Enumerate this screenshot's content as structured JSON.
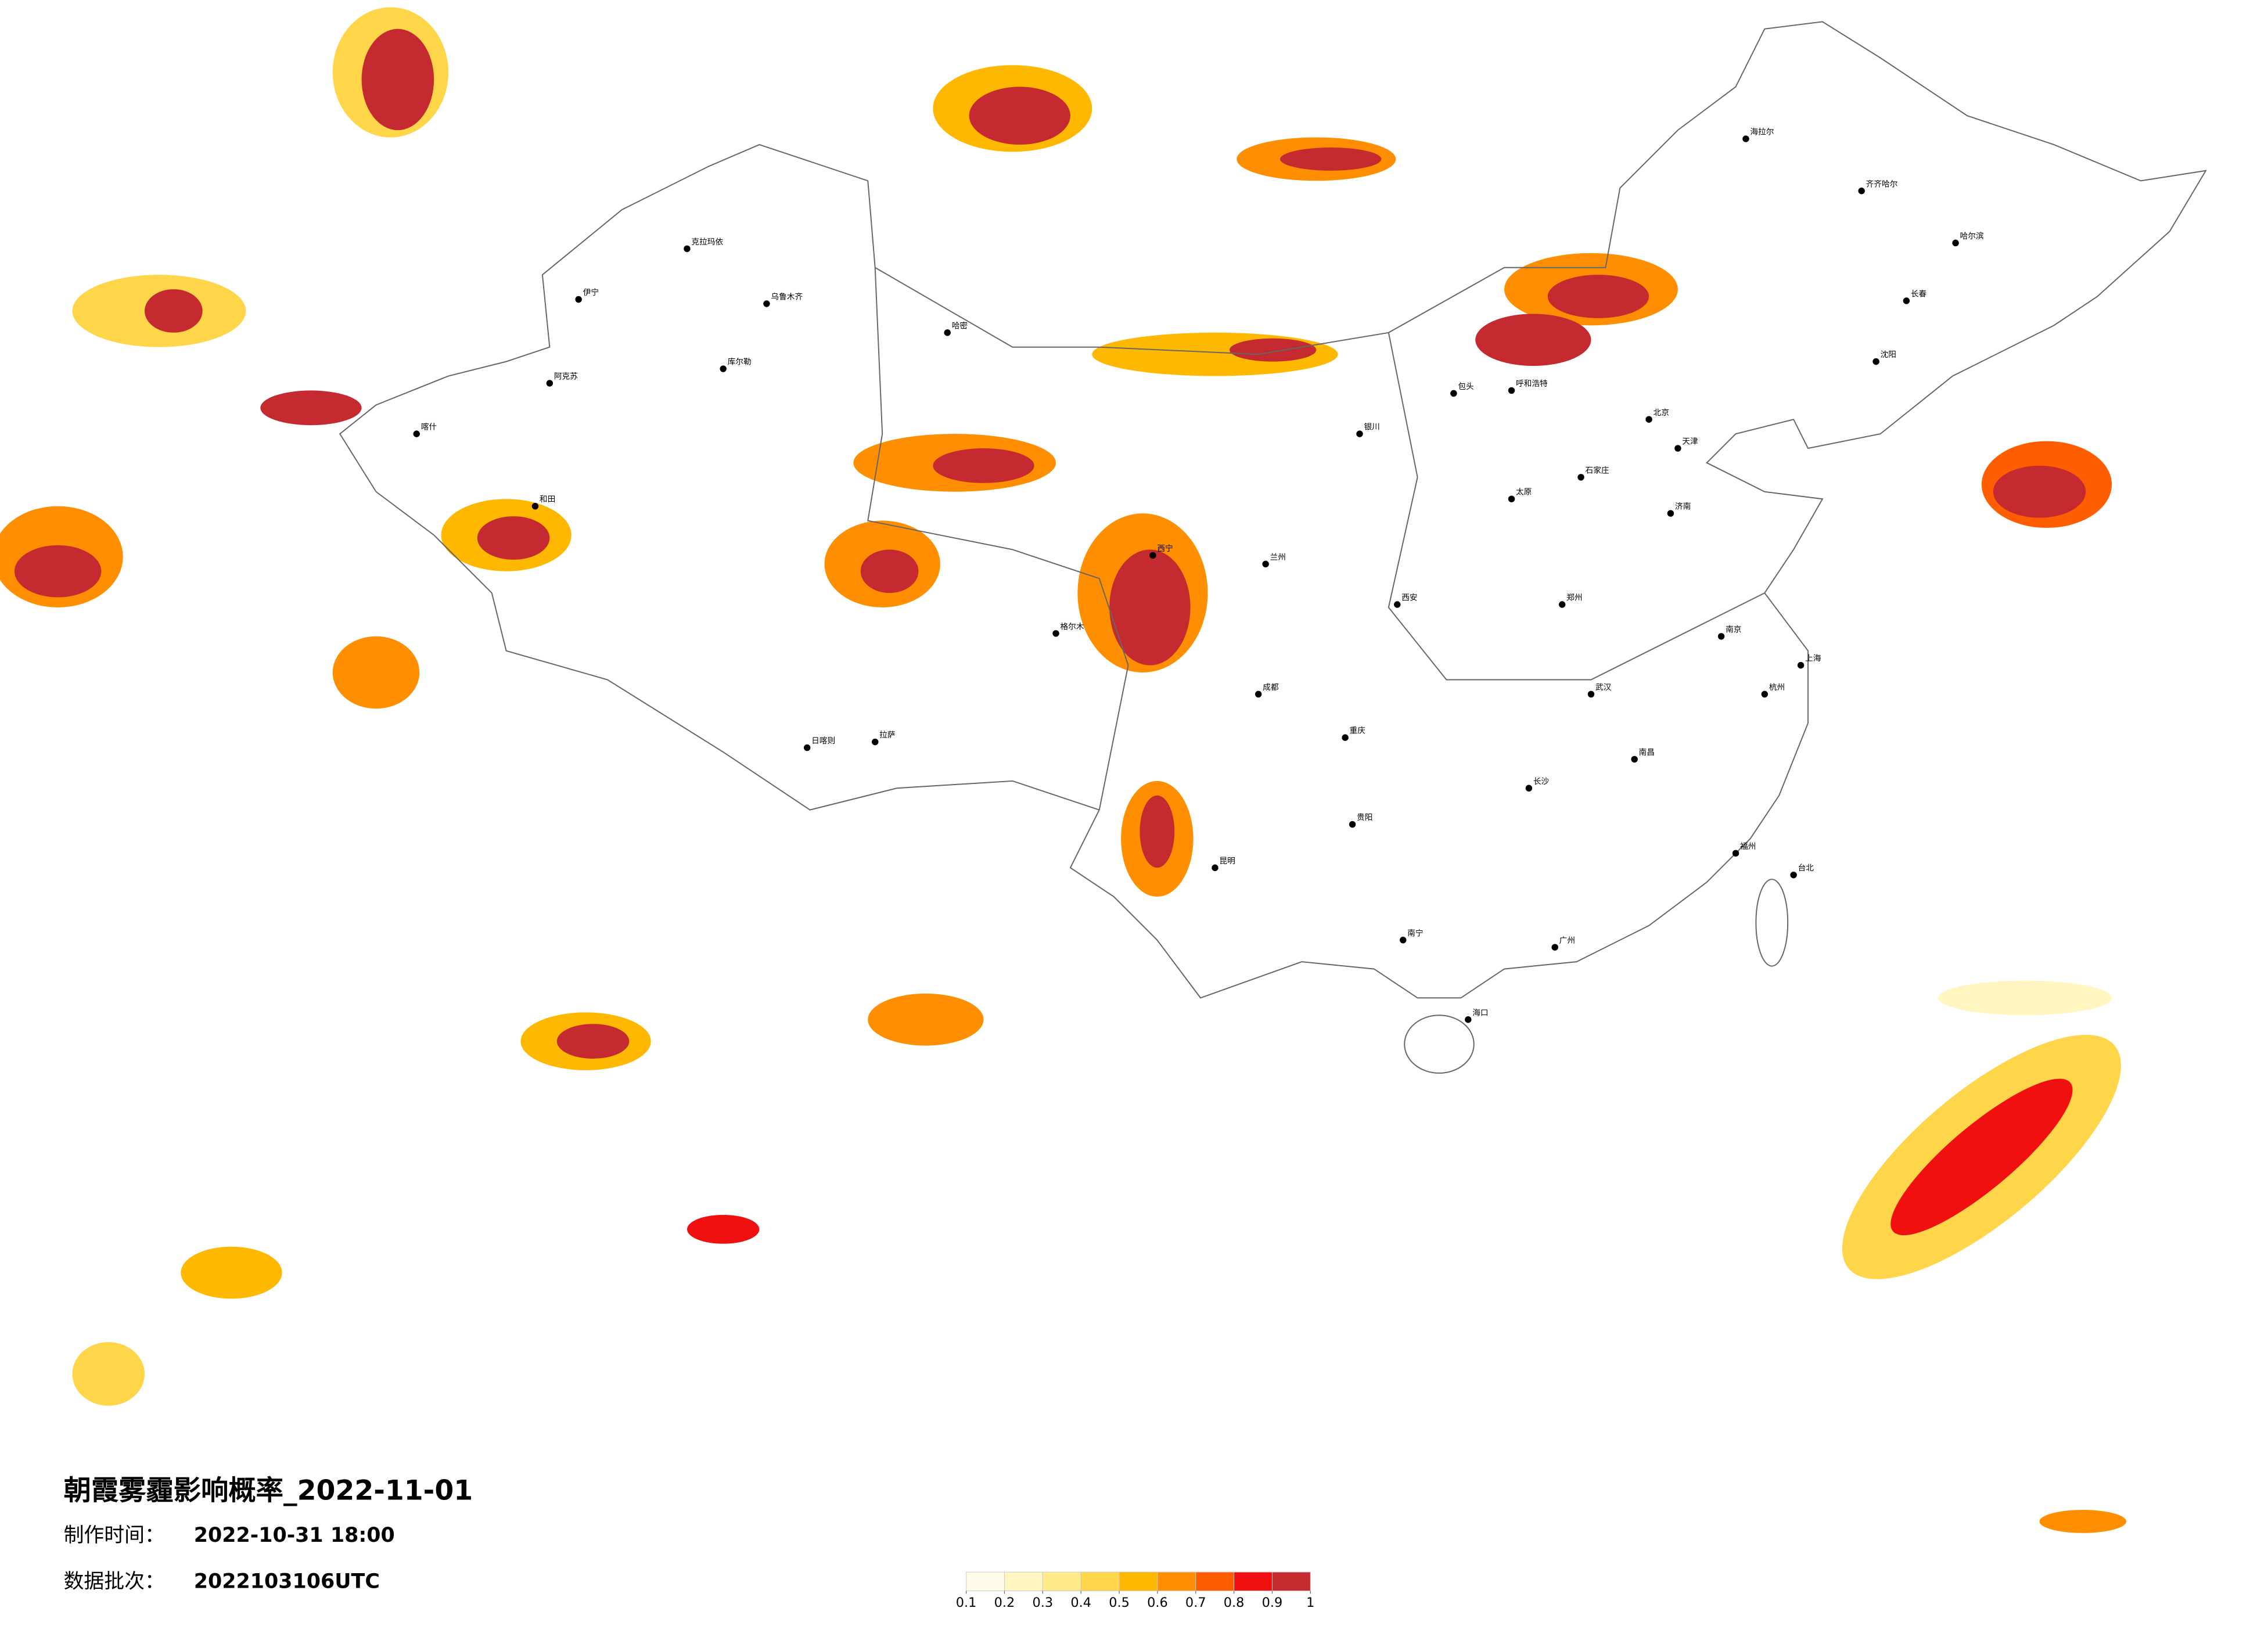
{
  "header": {
    "title": "朝霞雾霾影响概率_2022-11-01",
    "made_label": "制作时间：",
    "made_time": "2022-10-31 18:00",
    "batch_label": "数据批次：",
    "batch": "2022103106UTC"
  },
  "legend": {
    "ticks": [
      0.1,
      0.2,
      0.3,
      0.4,
      0.5,
      0.6,
      0.7,
      0.8,
      0.9,
      1
    ],
    "colors": [
      "#fffbe8",
      "#fff6c2",
      "#ffeb8a",
      "#ffd54a",
      "#ffb800",
      "#ff8f00",
      "#ff5e00",
      "#f01010",
      "#c42a30"
    ]
  },
  "cities": [
    "克拉玛依",
    "乌鲁木齐",
    "伊宁",
    "阿克苏",
    "喀什",
    "和田",
    "哈密",
    "库尔勒",
    "日喀则",
    "拉萨",
    "格尔木",
    "西宁",
    "兰州",
    "海拉尔",
    "齐齐哈尔",
    "哈尔滨",
    "长春",
    "沈阳",
    "北京",
    "天津",
    "石家庄",
    "太原",
    "济南",
    "郑州",
    "西安",
    "武汉",
    "南京",
    "上海",
    "杭州",
    "长沙",
    "南昌",
    "福州",
    "广州",
    "南宁",
    "昆明",
    "贵阳",
    "重庆",
    "成都",
    "海口",
    "台北",
    "包头",
    "呼和浩特",
    "银川"
  ]
}
